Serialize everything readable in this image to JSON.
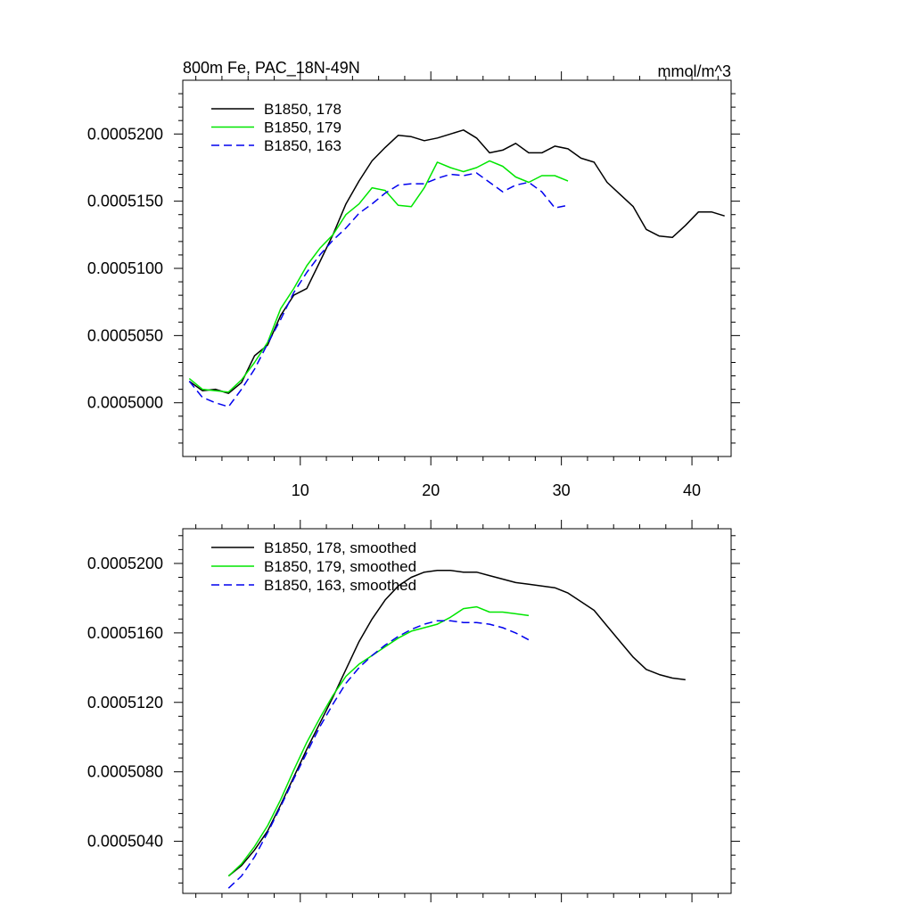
{
  "chart_data": [
    {
      "type": "line",
      "title": "800m Fe, PAC_18N-49N",
      "units": "mmol/m^3",
      "xlabel": "",
      "ylabel": "",
      "xlim": [
        1,
        43
      ],
      "ylim": [
        0.000496,
        0.000524
      ],
      "xticks": [
        10,
        20,
        30,
        40
      ],
      "xtick_labels": [
        "10",
        "20",
        "30",
        "40"
      ],
      "yticks": [
        0.0005,
        0.000505,
        0.00051,
        0.000515,
        0.00052
      ],
      "ytick_labels": [
        "0.0005000",
        "0.0005050",
        "0.0005100",
        "0.0005150",
        "0.0005200"
      ],
      "legend_position": "top-left",
      "series": [
        {
          "name": "B1850, 178",
          "color": "#000000",
          "dash": "solid",
          "x": [
            1.5,
            2.5,
            3.5,
            4.5,
            5.5,
            6.5,
            7.5,
            8.5,
            9.5,
            10.5,
            11.5,
            12.5,
            13.5,
            14.5,
            15.5,
            16.5,
            17.5,
            18.5,
            19.5,
            20.5,
            21.5,
            22.5,
            23.5,
            24.5,
            25.5,
            26.5,
            27.5,
            28.5,
            29.5,
            30.5,
            31.5,
            32.5,
            33.5,
            34.5,
            35.5,
            36.5,
            37.5,
            38.5,
            39.5,
            40.5,
            41.5,
            42.5
          ],
          "y": [
            0.0005016,
            0.0005009,
            0.000501,
            0.0005007,
            0.0005015,
            0.0005035,
            0.0005043,
            0.0005065,
            0.000508,
            0.0005085,
            0.0005105,
            0.0005125,
            0.0005148,
            0.0005165,
            0.000518,
            0.000519,
            0.0005199,
            0.0005198,
            0.0005195,
            0.0005197,
            0.00052,
            0.0005203,
            0.0005197,
            0.0005186,
            0.0005188,
            0.0005193,
            0.0005186,
            0.0005186,
            0.0005191,
            0.0005189,
            0.0005182,
            0.0005179,
            0.0005164,
            0.0005155,
            0.0005146,
            0.0005129,
            0.0005124,
            0.0005123,
            0.0005132,
            0.0005142,
            0.0005142,
            0.0005139
          ]
        },
        {
          "name": "B1850, 179",
          "color": "#00e600",
          "dash": "solid",
          "x": [
            1.5,
            2.5,
            3.5,
            4.5,
            5.5,
            6.5,
            7.5,
            8.5,
            9.5,
            10.5,
            11.5,
            12.5,
            13.5,
            14.5,
            15.5,
            16.5,
            17.5,
            18.5,
            19.5,
            20.5,
            21.5,
            22.5,
            23.5,
            24.5,
            25.5,
            26.5,
            27.5,
            28.5,
            29.5,
            30.5
          ],
          "y": [
            0.0005018,
            0.000501,
            0.0005009,
            0.0005008,
            0.0005017,
            0.000503,
            0.0005045,
            0.000507,
            0.0005085,
            0.0005102,
            0.0005115,
            0.0005125,
            0.000514,
            0.0005148,
            0.000516,
            0.0005158,
            0.0005147,
            0.0005146,
            0.000516,
            0.0005179,
            0.0005175,
            0.0005172,
            0.0005175,
            0.000518,
            0.0005176,
            0.0005168,
            0.0005164,
            0.0005169,
            0.0005169,
            0.0005165
          ]
        },
        {
          "name": "B1850, 163",
          "color": "#0000ee",
          "dash": "dashed",
          "x": [
            1.5,
            2.5,
            3.5,
            4.5,
            5.5,
            6.5,
            7.5,
            8.5,
            9.5,
            10.5,
            11.5,
            12.5,
            13.5,
            14.5,
            15.5,
            16.5,
            17.5,
            18.5,
            19.5,
            20.5,
            21.5,
            22.5,
            23.5,
            24.5,
            25.5,
            26.5,
            27.5,
            28.5,
            29.5,
            30.5
          ],
          "y": [
            0.0005016,
            0.0005004,
            0.0005,
            0.0004997,
            0.000501,
            0.0005025,
            0.0005044,
            0.0005062,
            0.0005082,
            0.0005097,
            0.000511,
            0.0005121,
            0.000513,
            0.0005141,
            0.0005148,
            0.0005156,
            0.0005162,
            0.0005163,
            0.0005163,
            0.0005167,
            0.000517,
            0.0005169,
            0.0005171,
            0.0005164,
            0.0005157,
            0.0005162,
            0.0005164,
            0.0005157,
            0.0005145,
            0.0005147
          ]
        }
      ]
    },
    {
      "type": "line",
      "title": "",
      "xlabel": "",
      "ylabel": "",
      "xlim": [
        1,
        43
      ],
      "ylim": [
        0.000501,
        0.000522
      ],
      "xticks": [
        10,
        20,
        30,
        40
      ],
      "yticks": [
        0.000504,
        0.000508,
        0.000512,
        0.000516,
        0.00052
      ],
      "ytick_labels": [
        "0.0005040",
        "0.0005080",
        "0.0005120",
        "0.0005160",
        "0.0005200"
      ],
      "legend_position": "top-left",
      "series": [
        {
          "name": "B1850, 178, smoothed",
          "color": "#000000",
          "dash": "solid",
          "x": [
            4.5,
            5.5,
            6.5,
            7.5,
            8.5,
            9.5,
            10.5,
            11.5,
            12.5,
            13.5,
            14.5,
            15.5,
            16.5,
            17.5,
            18.5,
            19.5,
            20.5,
            21.5,
            22.5,
            23.5,
            24.5,
            25.5,
            26.5,
            27.5,
            28.5,
            29.5,
            30.5,
            31.5,
            32.5,
            33.5,
            34.5,
            35.5,
            36.5,
            37.5,
            38.5,
            39.5
          ],
          "y": [
            0.000502,
            0.0005026,
            0.0005035,
            0.0005046,
            0.0005061,
            0.0005077,
            0.0005093,
            0.0005108,
            0.0005123,
            0.0005139,
            0.0005155,
            0.0005168,
            0.0005179,
            0.0005187,
            0.0005192,
            0.0005195,
            0.0005196,
            0.0005196,
            0.0005195,
            0.0005195,
            0.0005193,
            0.0005191,
            0.0005189,
            0.0005188,
            0.0005187,
            0.0005186,
            0.0005183,
            0.0005178,
            0.0005173,
            0.0005164,
            0.0005155,
            0.0005146,
            0.0005139,
            0.0005136,
            0.0005134,
            0.0005133
          ]
        },
        {
          "name": "B1850, 179, smoothed",
          "color": "#00e600",
          "dash": "solid",
          "x": [
            4.5,
            5.5,
            6.5,
            7.5,
            8.5,
            9.5,
            10.5,
            11.5,
            12.5,
            13.5,
            14.5,
            15.5,
            16.5,
            17.5,
            18.5,
            19.5,
            20.5,
            21.5,
            22.5,
            23.5,
            24.5,
            25.5,
            26.5,
            27.5
          ],
          "y": [
            0.000502,
            0.0005027,
            0.0005037,
            0.0005049,
            0.0005064,
            0.0005081,
            0.0005097,
            0.0005111,
            0.0005124,
            0.0005135,
            0.0005142,
            0.0005147,
            0.0005152,
            0.0005157,
            0.0005161,
            0.0005163,
            0.0005165,
            0.0005169,
            0.0005174,
            0.0005175,
            0.0005172,
            0.0005172,
            0.0005171,
            0.000517
          ]
        },
        {
          "name": "B1850, 163, smoothed",
          "color": "#0000ee",
          "dash": "dashed",
          "x": [
            4.5,
            5.5,
            6.5,
            7.5,
            8.5,
            9.5,
            10.5,
            11.5,
            12.5,
            13.5,
            14.5,
            15.5,
            16.5,
            17.5,
            18.5,
            19.5,
            20.5,
            21.5,
            22.5,
            23.5,
            24.5,
            25.5,
            26.5,
            27.5
          ],
          "y": [
            0.0005013,
            0.000502,
            0.0005031,
            0.0005045,
            0.000506,
            0.0005076,
            0.0005091,
            0.0005106,
            0.0005119,
            0.0005131,
            0.000514,
            0.0005147,
            0.0005153,
            0.0005158,
            0.0005162,
            0.0005165,
            0.0005167,
            0.0005167,
            0.0005166,
            0.0005166,
            0.0005165,
            0.0005163,
            0.000516,
            0.0005156
          ]
        }
      ]
    }
  ]
}
